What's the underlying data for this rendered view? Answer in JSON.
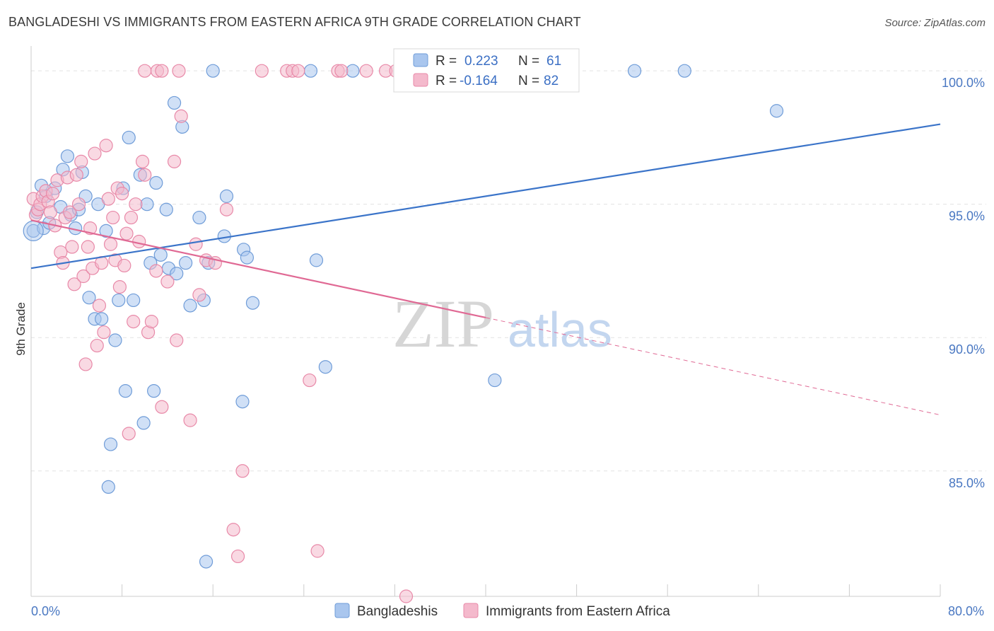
{
  "header": {
    "title": "BANGLADESHI VS IMMIGRANTS FROM EASTERN AFRICA 9TH GRADE CORRELATION CHART",
    "source": "Source: ZipAtlas.com"
  },
  "watermark": {
    "zip": "ZIP",
    "atlas": "atlas"
  },
  "colors": {
    "blue_fill": "#a9c6ee",
    "blue_stroke": "#6f9cd8",
    "blue_line": "#3b74c9",
    "pink_fill": "#f4b9cc",
    "pink_stroke": "#e889a8",
    "pink_line": "#e06994",
    "grid": "#e2e2e2",
    "tick_text": "#4a78c2"
  },
  "stats_legend": {
    "rows": [
      {
        "r_label": "R =",
        "r_value": "0.223",
        "n_label": "N =",
        "n_value": "61"
      },
      {
        "r_label": "R =",
        "r_value": "-0.164",
        "n_label": "N =",
        "n_value": "82"
      }
    ]
  },
  "chart_data": {
    "type": "scatter",
    "title": "BANGLADESHI VS IMMIGRANTS FROM EASTERN AFRICA 9TH GRADE CORRELATION CHART",
    "xlabel": "",
    "ylabel": "9th Grade",
    "xlim": [
      0,
      80
    ],
    "ylim": [
      80.3,
      100.8
    ],
    "x_tick_labels": [
      {
        "value": 0,
        "label": "0.0%"
      },
      {
        "value": 80,
        "label": "80.0%"
      }
    ],
    "y_tick_labels": [
      {
        "value": 100,
        "label": "100.0%"
      },
      {
        "value": 95,
        "label": "95.0%"
      },
      {
        "value": 90,
        "label": "90.0%"
      },
      {
        "value": 85,
        "label": "85.0%"
      }
    ],
    "grid": true,
    "legend_position": "bottom-center",
    "series": [
      {
        "name": "Bangladeshis",
        "color": "#a9c6ee",
        "trend": {
          "x": [
            0,
            80
          ],
          "y": [
            92.6,
            98.0
          ],
          "dashed_from": null
        },
        "points": [
          [
            0.2,
            94.0
          ],
          [
            0.5,
            94.7
          ],
          [
            0.9,
            95.7
          ],
          [
            1.1,
            94.1
          ],
          [
            1.3,
            95.3
          ],
          [
            1.6,
            94.3
          ],
          [
            2.1,
            95.6
          ],
          [
            2.6,
            94.9
          ],
          [
            2.8,
            96.3
          ],
          [
            3.2,
            96.8
          ],
          [
            3.5,
            94.6
          ],
          [
            3.9,
            94.1
          ],
          [
            4.2,
            94.8
          ],
          [
            4.5,
            96.2
          ],
          [
            4.8,
            95.3
          ],
          [
            5.1,
            91.5
          ],
          [
            5.6,
            90.7
          ],
          [
            5.9,
            95.0
          ],
          [
            6.2,
            90.7
          ],
          [
            6.6,
            94.0
          ],
          [
            7.0,
            86.0
          ],
          [
            6.8,
            84.4
          ],
          [
            7.4,
            89.9
          ],
          [
            7.7,
            91.4
          ],
          [
            8.1,
            95.6
          ],
          [
            8.3,
            88.0
          ],
          [
            8.6,
            97.5
          ],
          [
            9.0,
            91.4
          ],
          [
            9.6,
            96.1
          ],
          [
            9.9,
            86.8
          ],
          [
            10.2,
            95.0
          ],
          [
            10.5,
            92.8
          ],
          [
            10.8,
            88.0
          ],
          [
            11.0,
            95.8
          ],
          [
            11.4,
            93.1
          ],
          [
            11.9,
            94.8
          ],
          [
            12.1,
            92.6
          ],
          [
            12.6,
            98.8
          ],
          [
            12.8,
            92.4
          ],
          [
            13.3,
            97.9
          ],
          [
            13.6,
            92.8
          ],
          [
            14.0,
            91.2
          ],
          [
            14.8,
            94.5
          ],
          [
            15.2,
            91.4
          ],
          [
            15.6,
            92.8
          ],
          [
            15.4,
            81.6
          ],
          [
            16.0,
            100.0
          ],
          [
            17.0,
            93.8
          ],
          [
            17.2,
            95.3
          ],
          [
            18.6,
            87.6
          ],
          [
            18.7,
            93.3
          ],
          [
            19.0,
            93.0
          ],
          [
            19.5,
            91.3
          ],
          [
            24.6,
            100.0
          ],
          [
            25.1,
            92.9
          ],
          [
            25.9,
            88.9
          ],
          [
            28.3,
            100.0
          ],
          [
            40.8,
            88.4
          ],
          [
            53.1,
            100.0
          ],
          [
            57.5,
            100.0
          ],
          [
            65.6,
            98.5
          ]
        ]
      },
      {
        "name": "Immigrants from Eastern Africa",
        "color": "#f4b9cc",
        "trend": {
          "x": [
            0,
            80
          ],
          "y": [
            94.4,
            87.1
          ],
          "dashed_from": 40
        },
        "points": [
          [
            0.2,
            95.2
          ],
          [
            0.4,
            94.6
          ],
          [
            0.6,
            94.8
          ],
          [
            0.8,
            95.0
          ],
          [
            1.0,
            95.3
          ],
          [
            1.3,
            95.5
          ],
          [
            1.5,
            95.1
          ],
          [
            1.7,
            94.7
          ],
          [
            1.9,
            95.4
          ],
          [
            2.1,
            94.2
          ],
          [
            2.3,
            95.9
          ],
          [
            2.6,
            93.2
          ],
          [
            2.8,
            92.8
          ],
          [
            3.0,
            94.5
          ],
          [
            3.2,
            96.0
          ],
          [
            3.4,
            94.7
          ],
          [
            3.6,
            93.4
          ],
          [
            3.8,
            92.0
          ],
          [
            4.0,
            96.1
          ],
          [
            4.2,
            95.0
          ],
          [
            4.4,
            96.6
          ],
          [
            4.6,
            92.3
          ],
          [
            4.8,
            89.0
          ],
          [
            5.0,
            93.4
          ],
          [
            5.2,
            94.1
          ],
          [
            5.4,
            92.6
          ],
          [
            5.6,
            96.9
          ],
          [
            5.8,
            89.7
          ],
          [
            6.0,
            91.2
          ],
          [
            6.2,
            92.8
          ],
          [
            6.4,
            90.2
          ],
          [
            6.6,
            97.2
          ],
          [
            6.8,
            95.2
          ],
          [
            7.0,
            93.5
          ],
          [
            7.2,
            94.5
          ],
          [
            7.4,
            92.9
          ],
          [
            7.6,
            95.6
          ],
          [
            7.8,
            91.9
          ],
          [
            8.0,
            95.4
          ],
          [
            8.2,
            92.7
          ],
          [
            8.4,
            93.9
          ],
          [
            8.6,
            86.4
          ],
          [
            8.8,
            94.5
          ],
          [
            9.0,
            90.6
          ],
          [
            9.2,
            95.0
          ],
          [
            9.5,
            93.6
          ],
          [
            9.8,
            96.6
          ],
          [
            10.0,
            96.1
          ],
          [
            10.3,
            90.2
          ],
          [
            10.6,
            90.6
          ],
          [
            11.0,
            92.5
          ],
          [
            11.5,
            87.4
          ],
          [
            12.0,
            92.1
          ],
          [
            12.6,
            96.6
          ],
          [
            12.8,
            89.9
          ],
          [
            13.2,
            98.3
          ],
          [
            14.0,
            86.9
          ],
          [
            14.5,
            93.5
          ],
          [
            14.8,
            91.6
          ],
          [
            15.4,
            92.9
          ],
          [
            16.2,
            92.8
          ],
          [
            17.2,
            94.8
          ],
          [
            17.8,
            82.8
          ],
          [
            18.2,
            81.8
          ],
          [
            18.6,
            85.0
          ],
          [
            20.3,
            100.0
          ],
          [
            22.5,
            100.0
          ],
          [
            23.0,
            100.0
          ],
          [
            23.5,
            100.0
          ],
          [
            24.5,
            88.4
          ],
          [
            25.2,
            82.0
          ],
          [
            27.0,
            100.0
          ],
          [
            27.3,
            100.0
          ],
          [
            29.5,
            100.0
          ],
          [
            31.2,
            100.0
          ],
          [
            32.1,
            100.0
          ],
          [
            33.0,
            80.3
          ],
          [
            34.1,
            100.0
          ],
          [
            10.0,
            100.0
          ],
          [
            11.1,
            100.0
          ],
          [
            11.5,
            100.0
          ],
          [
            13.0,
            100.0
          ]
        ]
      }
    ]
  },
  "bottom_legend": {
    "items": [
      {
        "label": "Bangladeshis"
      },
      {
        "label": "Immigrants from Eastern Africa"
      }
    ]
  }
}
